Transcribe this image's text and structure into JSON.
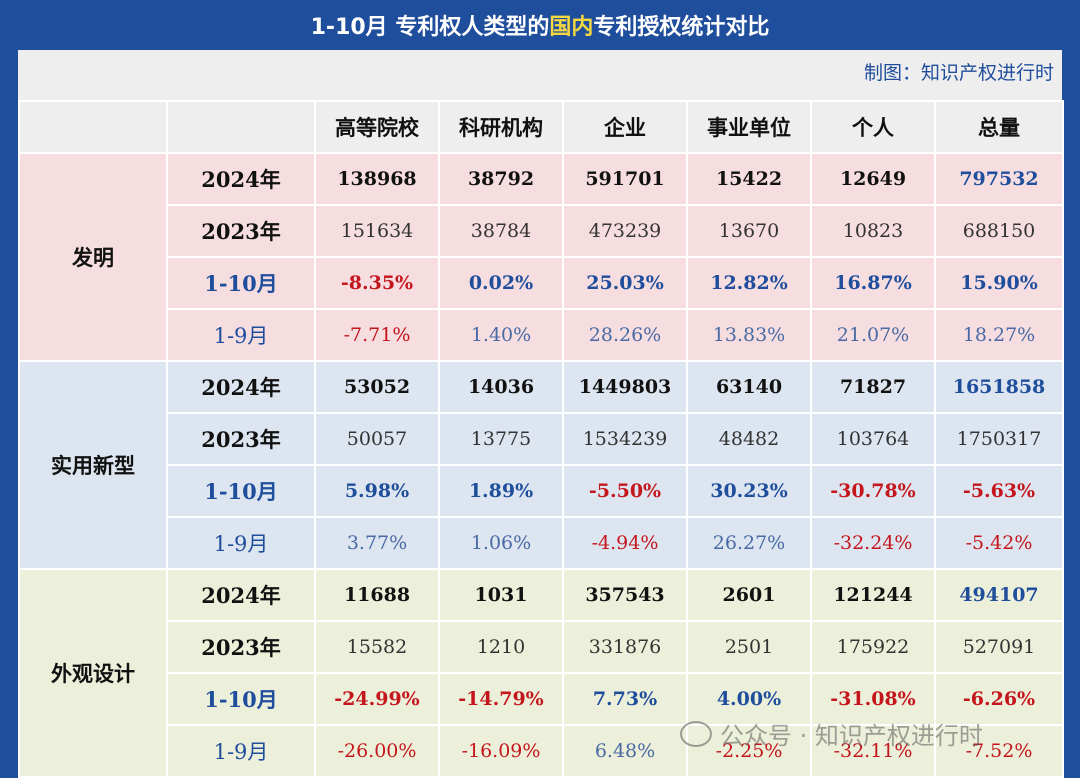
{
  "title": {
    "prefix": "1-10月  专利权人类型的",
    "highlight": "国内",
    "suffix": "专利授权统计对比"
  },
  "credit": "制图：知识产权进行时",
  "columns": [
    "高等院校",
    "科研机构",
    "企业",
    "事业单位",
    "个人",
    "总量"
  ],
  "groups": [
    {
      "name": "发明",
      "rows": [
        {
          "label": "2024年",
          "type": "y24",
          "values": [
            "138968",
            "38792",
            "591701",
            "15422",
            "12649",
            "797532"
          ]
        },
        {
          "label": "2023年",
          "type": "y23",
          "values": [
            "151634",
            "38784",
            "473239",
            "13670",
            "10823",
            "688150"
          ]
        },
        {
          "label": "1-10月",
          "type": "p10",
          "values": [
            "-8.35%",
            "0.02%",
            "25.03%",
            "12.82%",
            "16.87%",
            "15.90%"
          ]
        },
        {
          "label": "1-9月",
          "type": "p9",
          "values": [
            "-7.71%",
            "1.40%",
            "28.26%",
            "13.83%",
            "21.07%",
            "18.27%"
          ]
        }
      ]
    },
    {
      "name": "实用新型",
      "rows": [
        {
          "label": "2024年",
          "type": "y24",
          "values": [
            "53052",
            "14036",
            "1449803",
            "63140",
            "71827",
            "1651858"
          ]
        },
        {
          "label": "2023年",
          "type": "y23",
          "values": [
            "50057",
            "13775",
            "1534239",
            "48482",
            "103764",
            "1750317"
          ]
        },
        {
          "label": "1-10月",
          "type": "p10",
          "values": [
            "5.98%",
            "1.89%",
            "-5.50%",
            "30.23%",
            "-30.78%",
            "-5.63%"
          ]
        },
        {
          "label": "1-9月",
          "type": "p9",
          "values": [
            "3.77%",
            "1.06%",
            "-4.94%",
            "26.27%",
            "-32.24%",
            "-5.42%"
          ]
        }
      ]
    },
    {
      "name": "外观设计",
      "rows": [
        {
          "label": "2024年",
          "type": "y24",
          "values": [
            "11688",
            "1031",
            "357543",
            "2601",
            "121244",
            "494107"
          ]
        },
        {
          "label": "2023年",
          "type": "y23",
          "values": [
            "15582",
            "1210",
            "331876",
            "2501",
            "175922",
            "527091"
          ]
        },
        {
          "label": "1-10月",
          "type": "p10",
          "values": [
            "-24.99%",
            "-14.79%",
            "7.73%",
            "4.00%",
            "-31.08%",
            "-6.26%"
          ]
        },
        {
          "label": "1-9月",
          "type": "p9",
          "values": [
            "-26.00%",
            "-16.09%",
            "6.48%",
            "-2.25%",
            "-32.11%",
            "-7.52%"
          ]
        }
      ]
    }
  ],
  "watermark": "公众号 · 知识产权进行时",
  "colors": {
    "frame": "#1f4e9c",
    "highlight": "#f5d742",
    "negative": "#c4161c",
    "positive": "#1f4e9c",
    "faming_bg": "#f6dde0",
    "shiyong_bg": "#dde5f0",
    "waiguan_bg": "#ecefd9"
  }
}
